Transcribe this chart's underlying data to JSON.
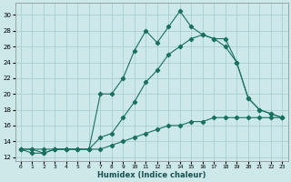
{
  "xlabel": "Humidex (Indice chaleur)",
  "bg_color": "#cce8e8",
  "grid_color": "#aacfcf",
  "line_color": "#1a7060",
  "xlim": [
    -0.5,
    23.5
  ],
  "ylim": [
    11.5,
    31.5
  ],
  "xticks": [
    0,
    1,
    2,
    3,
    4,
    5,
    6,
    7,
    8,
    9,
    10,
    11,
    12,
    13,
    14,
    15,
    16,
    17,
    18,
    19,
    20,
    21,
    22,
    23
  ],
  "yticks": [
    12,
    14,
    16,
    18,
    20,
    22,
    24,
    26,
    28,
    30
  ],
  "series1_x": [
    0,
    1,
    2,
    3,
    4,
    5,
    6,
    7,
    8,
    9,
    10,
    11,
    12,
    13,
    14,
    15,
    16,
    17,
    18,
    19,
    20,
    21,
    22,
    23
  ],
  "series1_y": [
    13.0,
    12.5,
    12.5,
    13.0,
    13.0,
    13.0,
    13.0,
    13.0,
    13.5,
    14.0,
    14.5,
    15.0,
    15.5,
    16.0,
    16.0,
    16.5,
    16.5,
    17.0,
    17.0,
    17.0,
    17.0,
    17.0,
    17.0,
    17.0
  ],
  "series2_x": [
    0,
    1,
    2,
    3,
    4,
    5,
    6,
    7,
    8,
    9,
    10,
    11,
    12,
    13,
    14,
    15,
    16,
    17,
    18,
    19,
    20,
    21,
    22,
    23
  ],
  "series2_y": [
    13.0,
    13.0,
    13.0,
    13.0,
    13.0,
    13.0,
    13.0,
    14.5,
    15.0,
    17.0,
    19.0,
    21.5,
    23.0,
    25.0,
    26.0,
    27.0,
    27.5,
    27.0,
    26.0,
    24.0,
    19.5,
    18.0,
    17.5,
    17.0
  ],
  "series3_x": [
    0,
    1,
    2,
    3,
    4,
    5,
    6,
    7,
    8,
    9,
    10,
    11,
    12,
    13,
    14,
    15,
    16,
    17,
    18,
    19,
    20,
    21,
    22,
    23
  ],
  "series3_y": [
    13.0,
    13.0,
    12.5,
    13.0,
    13.0,
    13.0,
    13.0,
    20.0,
    20.0,
    22.0,
    25.5,
    28.0,
    26.5,
    28.5,
    30.5,
    28.5,
    27.5,
    27.0,
    27.0,
    24.0,
    19.5,
    18.0,
    17.5,
    17.0
  ]
}
